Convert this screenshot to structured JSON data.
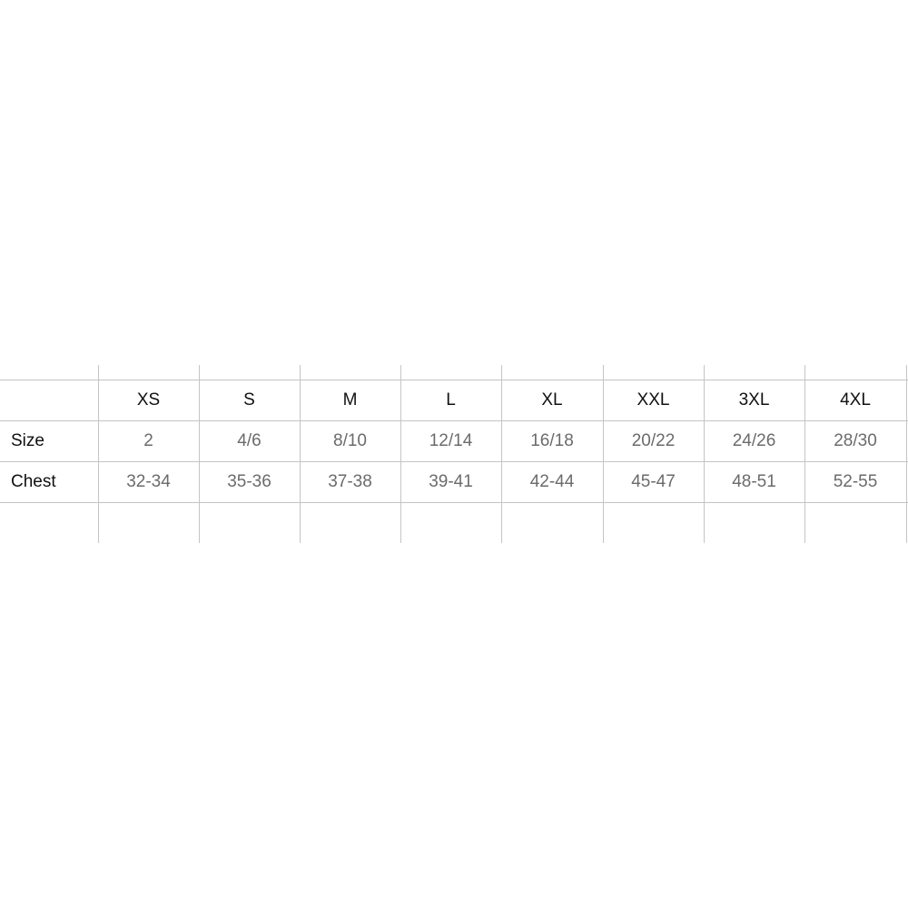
{
  "table": {
    "headers": [
      "",
      "XS",
      "S",
      "M",
      "L",
      "XL",
      "XXL",
      "3XL",
      "4XL"
    ],
    "rows": [
      {
        "label": "Size",
        "values": [
          "2",
          "4/6",
          "8/10",
          "12/14",
          "16/18",
          "20/22",
          "24/26",
          "28/30"
        ]
      },
      {
        "label": "Chest",
        "values": [
          "32-34",
          "35-36",
          "37-38",
          "39-41",
          "42-44",
          "45-47",
          "48-51",
          "52-55"
        ]
      }
    ]
  },
  "colors": {
    "header_text": "#111111",
    "value_text": "#6b6b6b",
    "grid": "#c4c4c4"
  }
}
